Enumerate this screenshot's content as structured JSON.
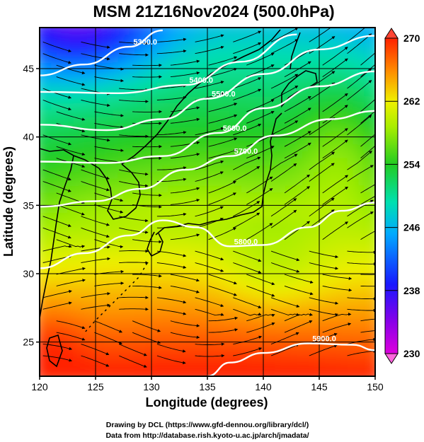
{
  "chart_data": {
    "type": "heatmap",
    "title": "MSM 21Z16Nov2024 (500.0hPa)",
    "xlabel": "Longitude (degrees)",
    "ylabel": "Latitude  (degrees)",
    "xlim": [
      120,
      150
    ],
    "ylim": [
      22.5,
      48
    ],
    "xticks": [
      "120",
      "125",
      "130",
      "135",
      "140",
      "145",
      "150"
    ],
    "yticks": [
      "25",
      "30",
      "35",
      "40",
      "45"
    ],
    "grid": true,
    "colorbar": {
      "min": 230,
      "max": 270,
      "ticks": [
        "230",
        "238",
        "246",
        "254",
        "262",
        "270"
      ]
    },
    "contours": [
      {
        "label": "5300.0",
        "lat_at_lon": [
          [
            120,
            44.5
          ],
          [
            124,
            45.3
          ],
          [
            128,
            46.6
          ],
          [
            131,
            47.8
          ]
        ]
      },
      {
        "label": "5400.0",
        "lat_at_lon": [
          [
            120,
            43.3
          ],
          [
            127,
            43.2
          ],
          [
            133,
            43.8
          ],
          [
            138,
            45.5
          ],
          [
            143,
            47.5
          ]
        ]
      },
      {
        "label": "5500.0",
        "lat_at_lon": [
          [
            120,
            40.9
          ],
          [
            126,
            40.5
          ],
          [
            131,
            41.3
          ],
          [
            135,
            42.8
          ],
          [
            140,
            44.6
          ],
          [
            145,
            46.4
          ],
          [
            150,
            47.4
          ]
        ]
      },
      {
        "label": "5600.0",
        "lat_at_lon": [
          [
            120,
            38.2
          ],
          [
            126,
            38.1
          ],
          [
            131,
            38.6
          ],
          [
            136,
            40.3
          ],
          [
            140,
            42.1
          ],
          [
            145,
            43.7
          ],
          [
            150,
            44.8
          ]
        ]
      },
      {
        "label": "5700.0",
        "lat_at_lon": [
          [
            120,
            34.9
          ],
          [
            125,
            35.3
          ],
          [
            129,
            36.2
          ],
          [
            133,
            37.6
          ],
          [
            137,
            38.6
          ],
          [
            141,
            40.1
          ],
          [
            146,
            41.3
          ],
          [
            150,
            41.9
          ]
        ]
      },
      {
        "label": "5800.0",
        "lat_at_lon": [
          [
            120,
            30.4
          ],
          [
            124,
            31.5
          ],
          [
            128,
            32.8
          ],
          [
            131,
            33.9
          ],
          [
            134,
            33.4
          ],
          [
            137,
            32.0
          ],
          [
            140,
            32.1
          ],
          [
            144,
            33.4
          ],
          [
            147,
            34.6
          ],
          [
            150,
            35.2
          ]
        ]
      },
      {
        "label": "5900.0",
        "lat_at_lon": [
          [
            135,
            22.5
          ],
          [
            137,
            23.5
          ],
          [
            140,
            24.2
          ],
          [
            144,
            24.9
          ],
          [
            148,
            24.8
          ],
          [
            150,
            24.4
          ]
        ]
      }
    ],
    "credits": [
      "Drawing by DCL (https://www.gfd-dennou.org/library/dcl/)",
      "Data from http://database.rish.kyoto-u.ac.jp/arch/jmadata/"
    ]
  }
}
